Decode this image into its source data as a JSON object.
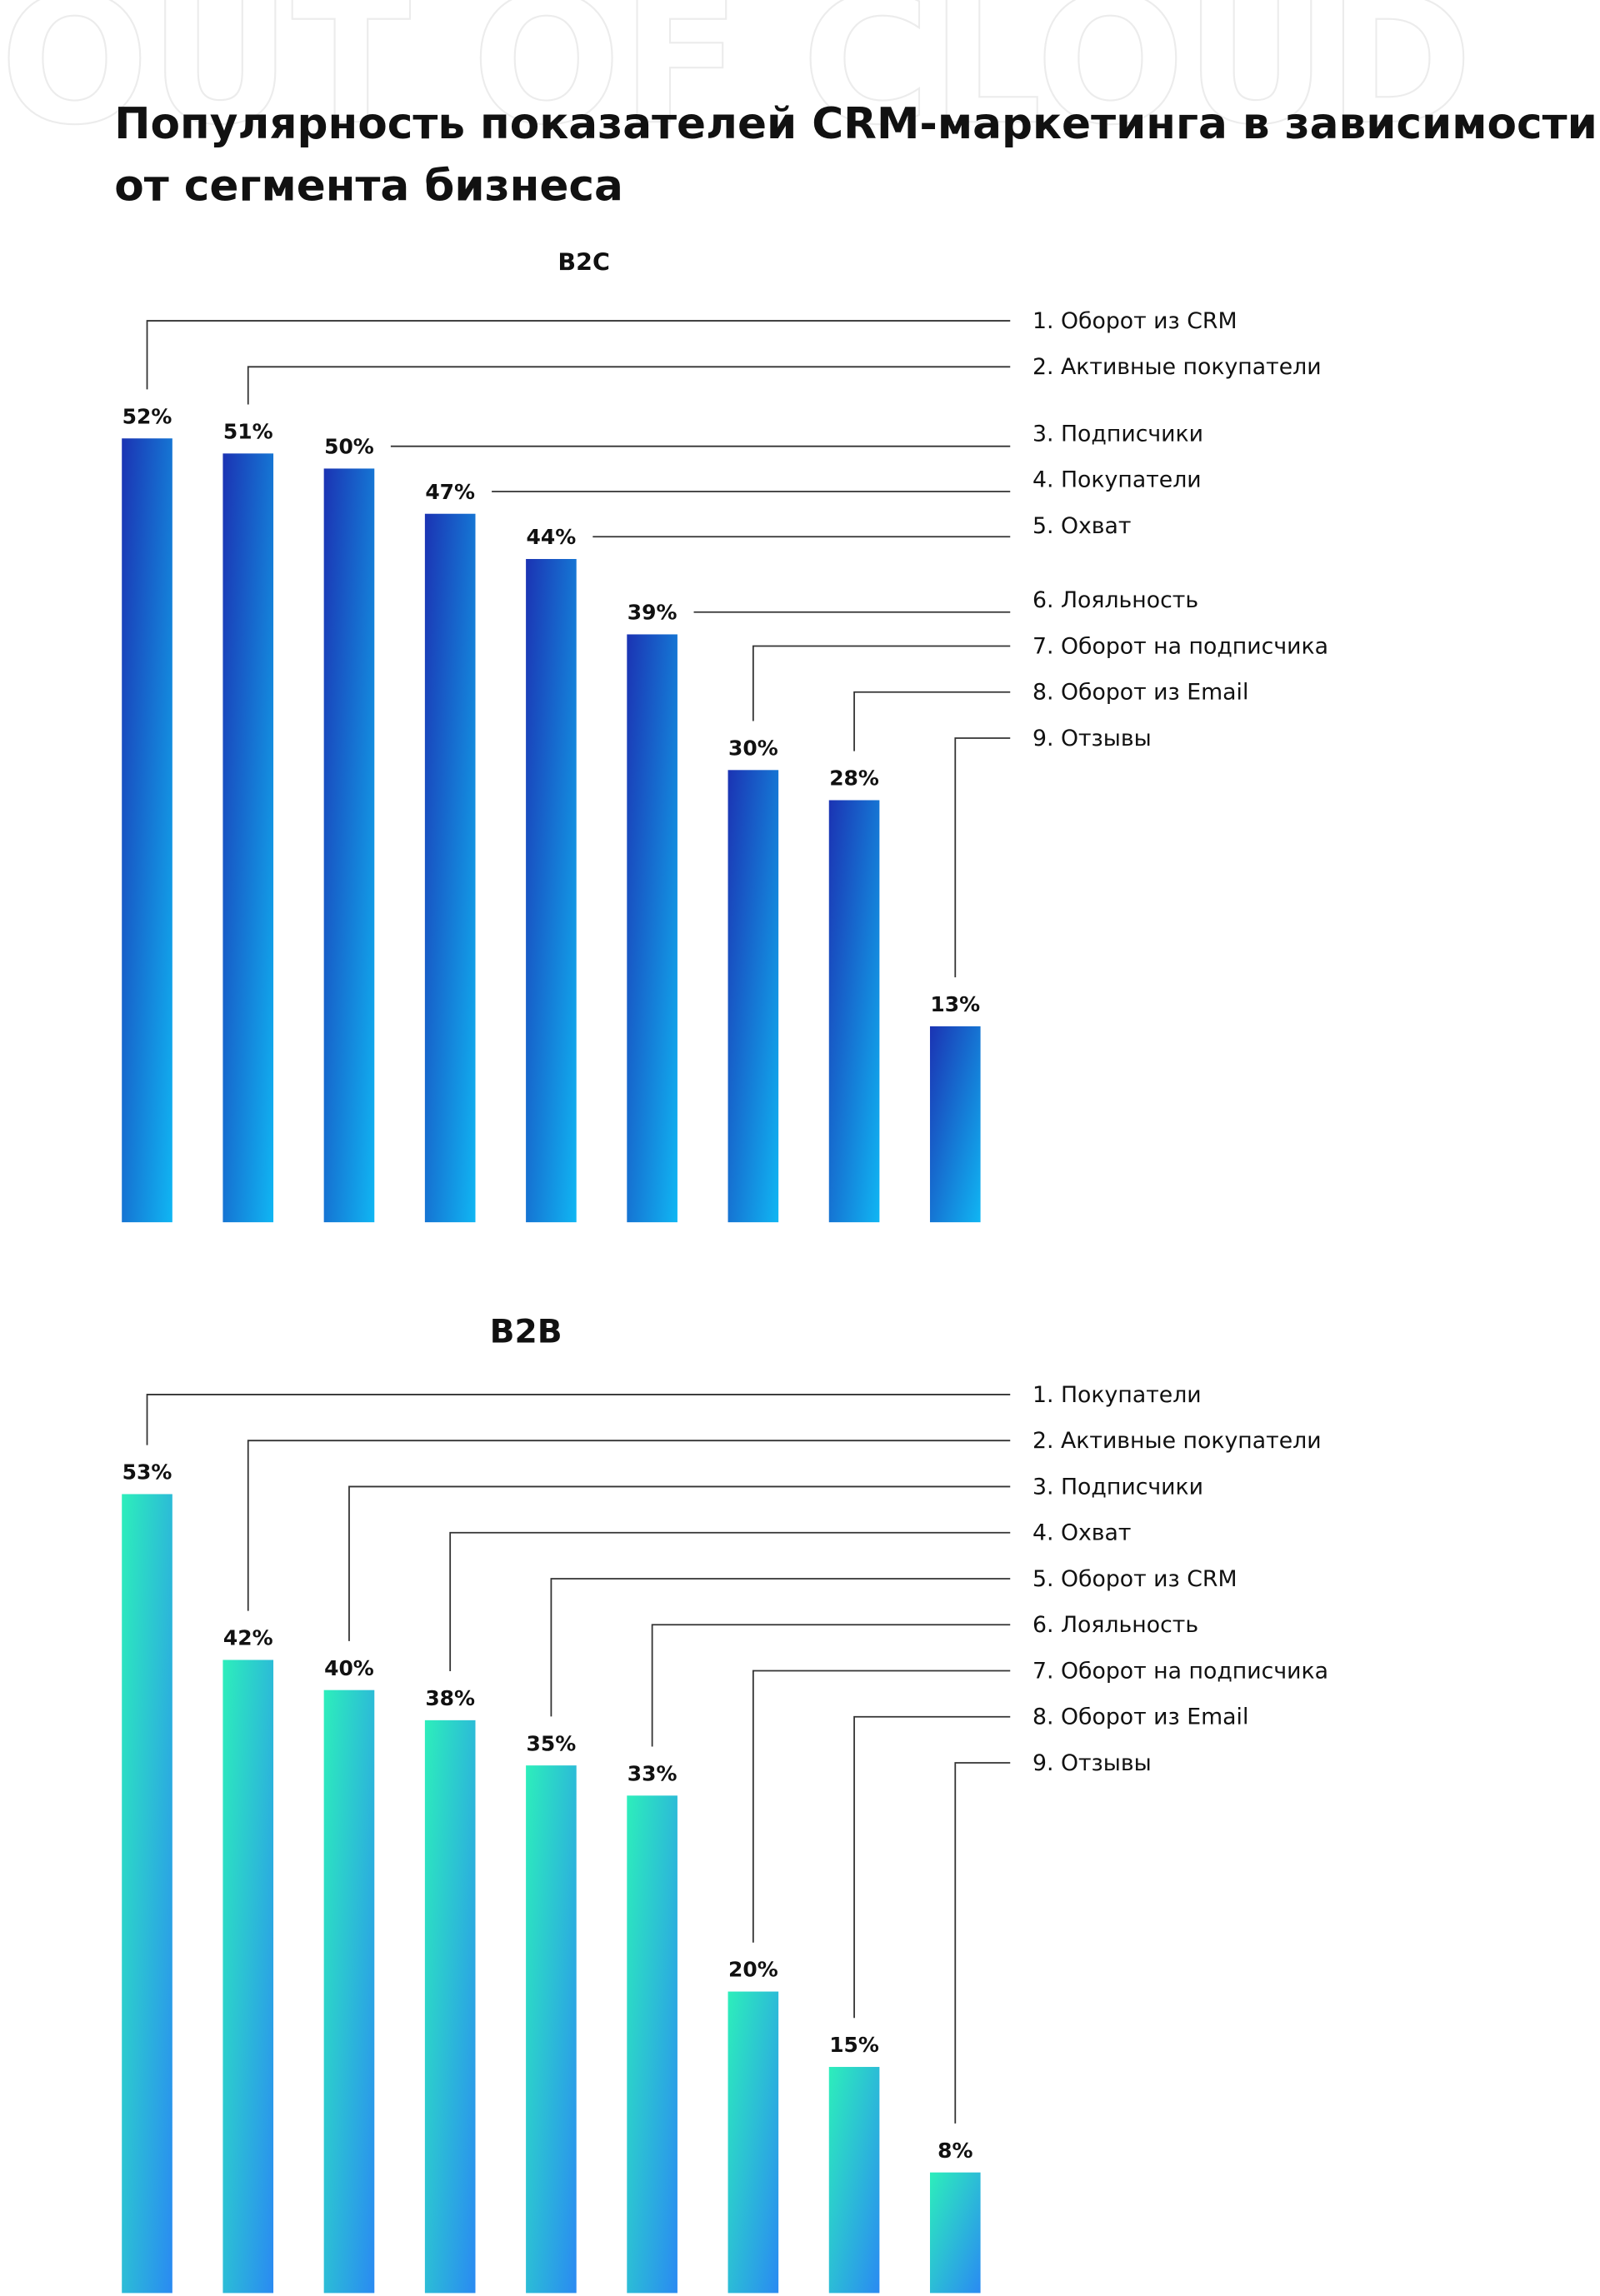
{
  "watermark": "OUT OF CLOUD",
  "title": [
    "Популярность показателей CRM-маркетинга в зависимости",
    "от сегмента бизнеса"
  ],
  "chart_data": [
    {
      "type": "bar",
      "title": "B2C",
      "categories": [
        "1. Оборот из CRM",
        "2. Активные покупатели",
        "3. Подписчики",
        "4. Покупатели",
        "5. Охват",
        "6. Лояльность",
        "7. Оборот на подписчика",
        "8. Оборот из Email",
        "9. Отзывы"
      ],
      "values": [
        52,
        51,
        50,
        47,
        44,
        39,
        30,
        28,
        13
      ],
      "value_labels": [
        "52%",
        "51%",
        "50%",
        "47%",
        "44%",
        "39%",
        "30%",
        "28%",
        "13%"
      ],
      "gradient": [
        "#1b33b3",
        "#10b6f3"
      ]
    },
    {
      "type": "bar",
      "title": "B2B",
      "categories": [
        "1. Покупатели",
        "2. Активные покупатели",
        "3. Подписчики",
        "4. Охват",
        "5. Оборот из CRM",
        "6. Лояльность",
        "7. Оборот на подписчика",
        "8. Оборот из Email",
        "9. Отзывы"
      ],
      "values": [
        53,
        42,
        40,
        38,
        35,
        33,
        20,
        15,
        8
      ],
      "value_labels": [
        "53%",
        "42%",
        "40%",
        "38%",
        "35%",
        "33%",
        "20%",
        "15%",
        "8%"
      ],
      "gradient": [
        "#2deebb",
        "#2a8af2"
      ]
    }
  ]
}
